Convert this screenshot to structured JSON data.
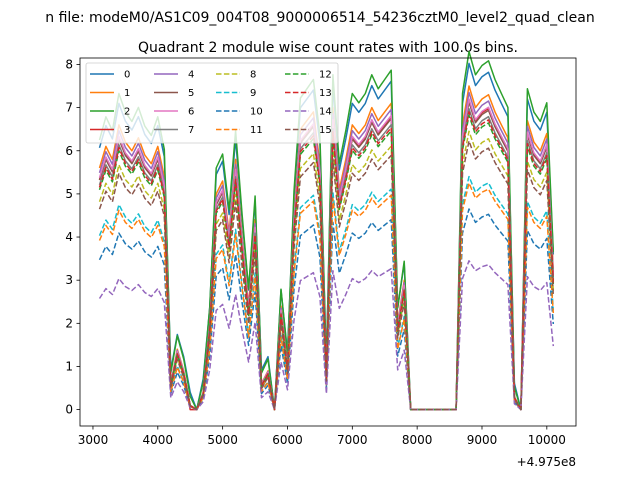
{
  "chart_data": {
    "type": "line",
    "suptitle": "n file: modeM0/AS1C09_004T08_9000006514_54236cztM0_level2_quad_clean",
    "title": "Quadrant 2 module wise count rates with 100.0s bins.",
    "xlabel": "",
    "ylabel": "",
    "x_offset_label": "+4.975e8",
    "xlim": [
      2800,
      10450
    ],
    "ylim": [
      -0.38,
      8.15
    ],
    "xticks": [
      3000,
      4000,
      5000,
      6000,
      7000,
      8000,
      9000,
      10000
    ],
    "xtick_labels": [
      "3000",
      "4000",
      "5000",
      "6000",
      "7000",
      "8000",
      "9000",
      "10000"
    ],
    "yticks": [
      0,
      1,
      2,
      3,
      4,
      5,
      6,
      7,
      8
    ],
    "ytick_labels": [
      "0",
      "1",
      "2",
      "3",
      "4",
      "5",
      "6",
      "7",
      "8"
    ],
    "grid": false,
    "legend": {
      "placement": "top-left",
      "columns": 4
    },
    "x": [
      3100,
      3200,
      3300,
      3400,
      3500,
      3600,
      3700,
      3800,
      3900,
      4000,
      4100,
      4200,
      4300,
      4400,
      4500,
      4600,
      4700,
      4800,
      4900,
      5000,
      5100,
      5200,
      5300,
      5400,
      5500,
      5600,
      5700,
      5800,
      5900,
      6000,
      6100,
      6200,
      6300,
      6400,
      6500,
      6600,
      6700,
      6800,
      6900,
      7000,
      7100,
      7200,
      7300,
      7400,
      7500,
      7600,
      7700,
      7800,
      7900,
      8000,
      8100,
      8200,
      8300,
      8400,
      8500,
      8600,
      8700,
      8800,
      8900,
      9000,
      9100,
      9200,
      9300,
      9400,
      9500,
      9600,
      9700,
      9800,
      9900,
      10000,
      10100
    ],
    "base_profile": [
      5.6,
      6.1,
      5.8,
      6.6,
      6.2,
      6.0,
      6.3,
      5.9,
      5.7,
      6.1,
      5.4,
      0.6,
      1.4,
      0.9,
      0.1,
      0.0,
      0.4,
      2.0,
      5.0,
      5.3,
      4.1,
      5.8,
      4.0,
      2.4,
      4.4,
      0.6,
      0.9,
      0.0,
      2.4,
      1.0,
      4.5,
      6.5,
      6.7,
      6.9,
      5.7,
      0.8,
      7.0,
      5.1,
      5.8,
      6.6,
      6.4,
      6.6,
      7.0,
      6.7,
      6.9,
      7.1,
      2.0,
      3.0,
      0.0,
      0.0,
      0.0,
      0.0,
      0.0,
      0.0,
      0.0,
      0.0,
      6.6,
      7.5,
      7.0,
      7.2,
      7.3,
      6.9,
      6.6,
      6.3,
      0.3,
      0.0,
      6.7,
      6.2,
      6.0,
      6.4,
      3.2
    ],
    "series": [
      {
        "name": "0",
        "color": "#1f77b4",
        "dash": "solid",
        "scale": 1.03,
        "shift": 0.3
      },
      {
        "name": "1",
        "color": "#ff7f0e",
        "dash": "solid",
        "scale": 1.0,
        "shift": 0.0
      },
      {
        "name": "2",
        "color": "#2ca02c",
        "dash": "solid",
        "scale": 1.08,
        "shift": 0.2
      },
      {
        "name": "3",
        "color": "#d62728",
        "dash": "solid",
        "scale": 0.97,
        "shift": -0.1
      },
      {
        "name": "4",
        "color": "#9467bd",
        "dash": "solid",
        "scale": 0.98,
        "shift": 0.0
      },
      {
        "name": "5",
        "color": "#8c564b",
        "dash": "solid",
        "scale": 0.95,
        "shift": 0.0
      },
      {
        "name": "6",
        "color": "#e377c2",
        "dash": "solid",
        "scale": 0.96,
        "shift": 0.0
      },
      {
        "name": "7",
        "color": "#7f7f7f",
        "dash": "solid",
        "scale": 0.93,
        "shift": 0.0
      },
      {
        "name": "8",
        "color": "#bcbd22",
        "dash": "dashed",
        "scale": 0.86,
        "shift": 0.0
      },
      {
        "name": "9",
        "color": "#17becf",
        "dash": "dashed",
        "scale": 0.72,
        "shift": 0.0
      },
      {
        "name": "10",
        "color": "#1f77b4",
        "dash": "dashed",
        "scale": 0.62,
        "shift": 0.0
      },
      {
        "name": "11",
        "color": "#ff7f0e",
        "dash": "dashed",
        "scale": 0.7,
        "shift": 0.0
      },
      {
        "name": "12",
        "color": "#2ca02c",
        "dash": "dashed",
        "scale": 0.91,
        "shift": 0.0
      },
      {
        "name": "13",
        "color": "#d62728",
        "dash": "dashed",
        "scale": 0.92,
        "shift": 0.0
      },
      {
        "name": "14",
        "color": "#9467bd",
        "dash": "dashed",
        "scale": 0.46,
        "shift": 0.0
      },
      {
        "name": "15",
        "color": "#8c564b",
        "dash": "dashed",
        "scale": 0.83,
        "shift": 0.0
      }
    ]
  }
}
